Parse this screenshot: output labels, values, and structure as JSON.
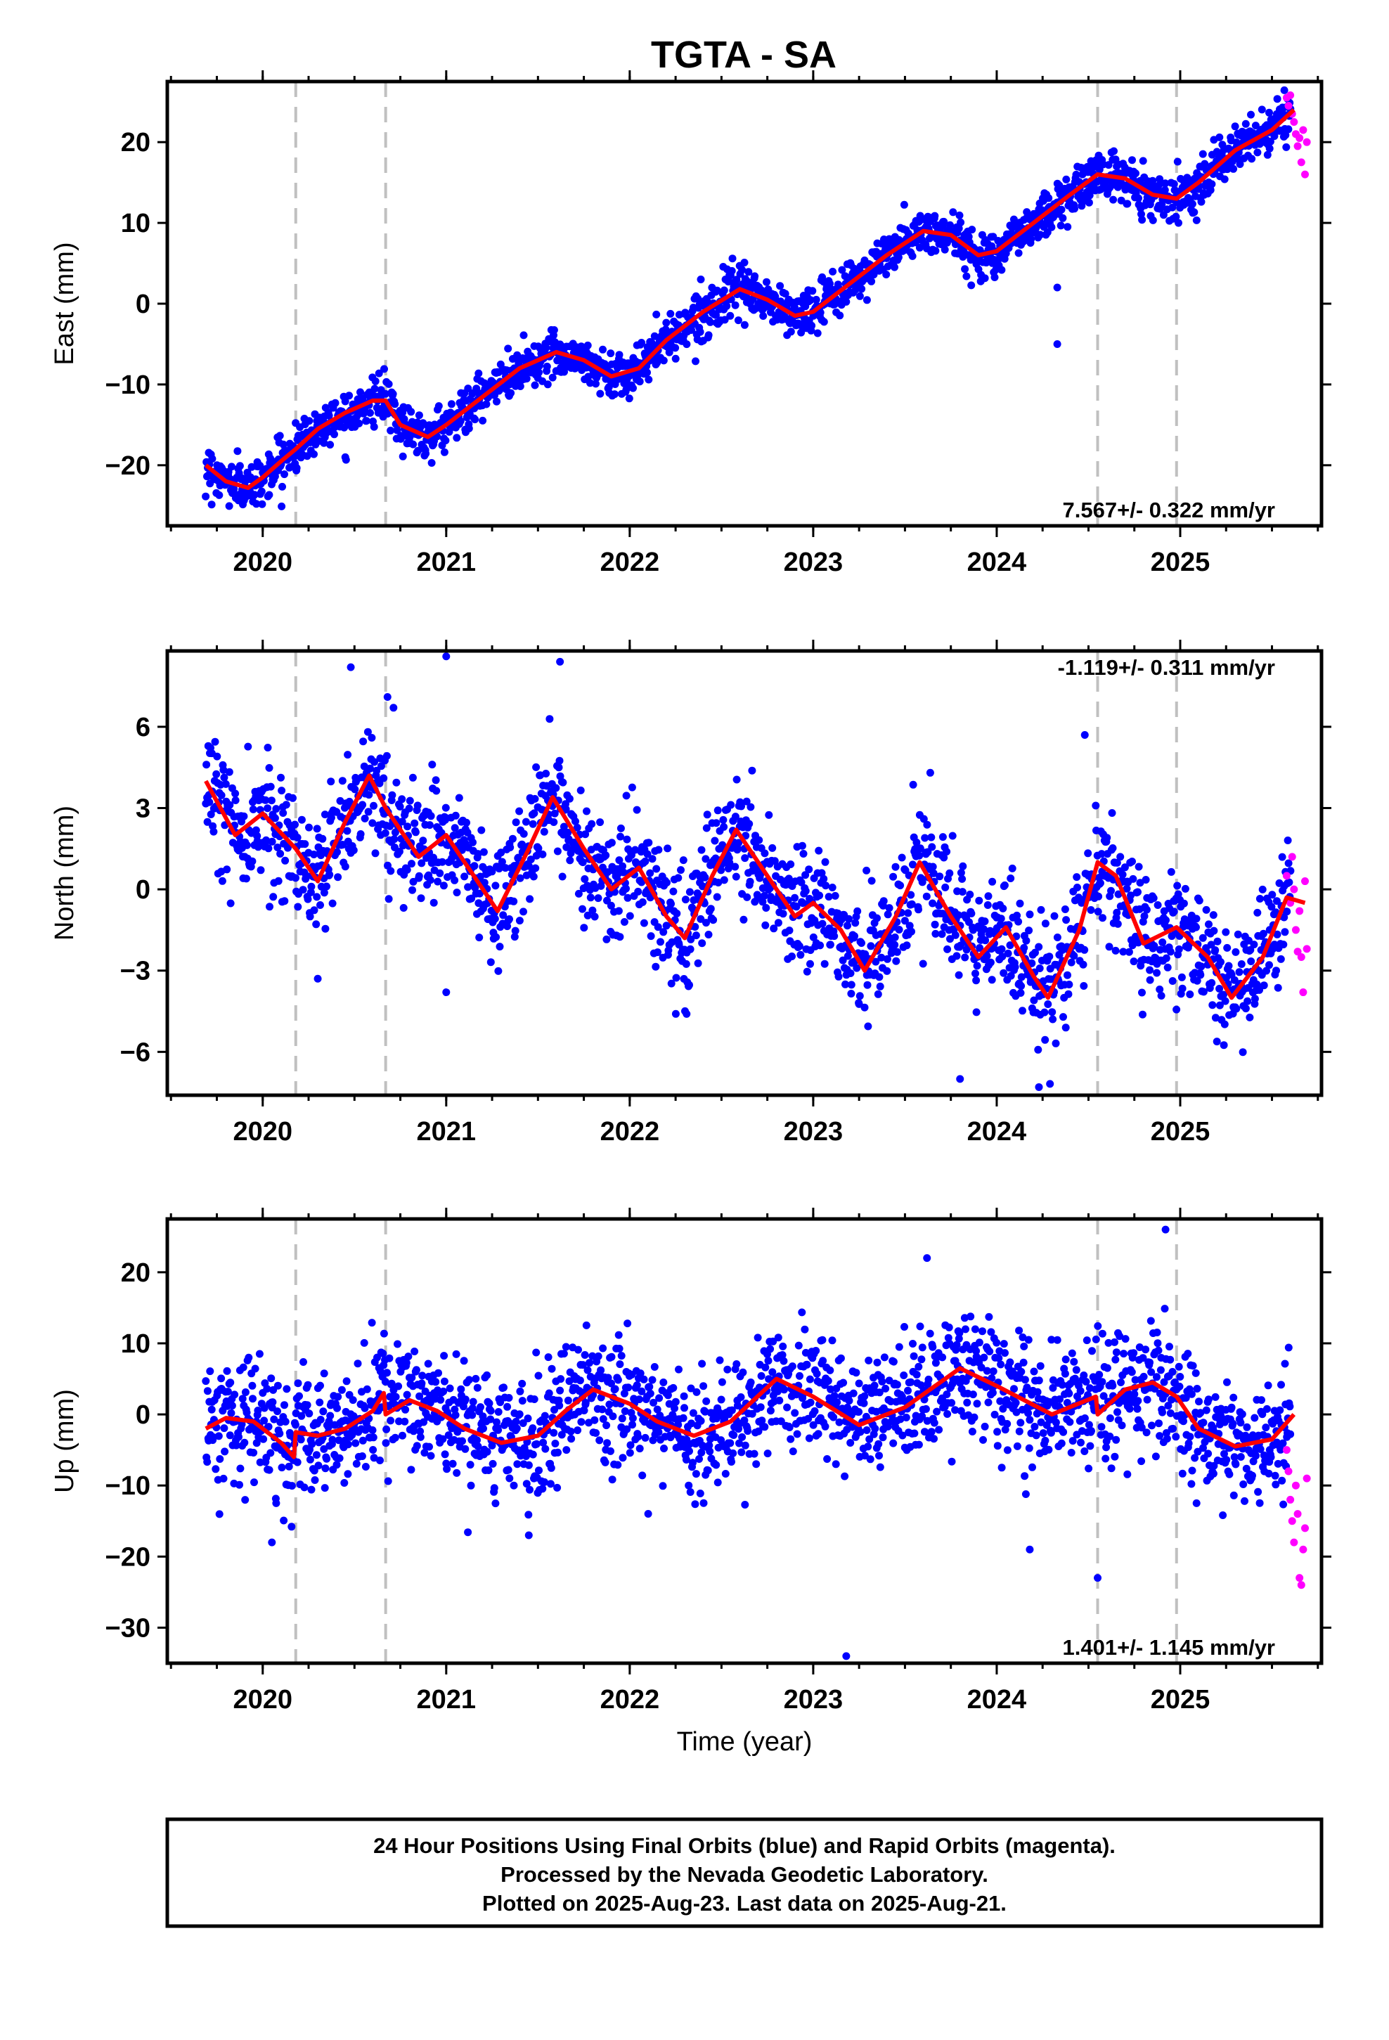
{
  "title": "TGTA - SA",
  "colors": {
    "final": "#0000ff",
    "rapid": "#ff00ff",
    "model": "#ff0000",
    "breaks": "#c0c0c0"
  },
  "breaks": [
    2020.18,
    2020.67,
    2024.55,
    2024.98
  ],
  "chart_data": [
    {
      "type": "scatter",
      "panel": "east",
      "ylabel": "East (mm)",
      "xlabel": "",
      "xlim": [
        2019.48,
        2025.77
      ],
      "ylim": [
        -27.5,
        27.5
      ],
      "yticks": [
        -20,
        -10,
        0,
        10,
        20
      ],
      "xticks": [
        2020,
        2021,
        2022,
        2023,
        2024,
        2025
      ],
      "xtick_labels": [
        "2020",
        "2021",
        "2022",
        "2023",
        "2024",
        "2025"
      ],
      "rate": "7.567+/- 0.322 mm/yr",
      "rate_pos": "bottom-right",
      "model_curve": {
        "x": [
          2019.69,
          2019.8,
          2019.92,
          2020.0,
          2020.1,
          2020.18,
          2020.3,
          2020.45,
          2020.6,
          2020.67,
          2020.75,
          2020.9,
          2021.0,
          2021.2,
          2021.4,
          2021.6,
          2021.75,
          2021.9,
          2022.05,
          2022.2,
          2022.4,
          2022.6,
          2022.75,
          2022.9,
          2023.0,
          2023.2,
          2023.4,
          2023.6,
          2023.75,
          2023.9,
          2024.0,
          2024.2,
          2024.4,
          2024.55,
          2024.7,
          2024.85,
          2024.98,
          2025.1,
          2025.3,
          2025.5,
          2025.62
        ],
        "y": [
          -20,
          -22,
          -22.8,
          -21.5,
          -19.5,
          -18,
          -15.5,
          -13.5,
          -12,
          -12,
          -15,
          -16.5,
          -15,
          -11.5,
          -8,
          -6,
          -7,
          -9,
          -8,
          -4.5,
          -1,
          1.8,
          0.5,
          -1.5,
          -1,
          2.5,
          6,
          9,
          8.5,
          6,
          6.5,
          10,
          13.5,
          16,
          15.5,
          13.5,
          13,
          15,
          19,
          21.5,
          24
        ]
      },
      "final_points": {
        "count": 1850,
        "noise": 1.4,
        "outliers": [
          [
            2024.33,
            2.0
          ],
          [
            2024.33,
            -5.0
          ],
          [
            2020.45,
            -19.0
          ]
        ]
      },
      "rapid_points": {
        "x": [
          2025.58,
          2025.59,
          2025.6,
          2025.61,
          2025.62,
          2025.63,
          2025.64,
          2025.65,
          2025.66,
          2025.67,
          2025.68,
          2025.69
        ],
        "y": [
          25.5,
          24.5,
          25.8,
          23.5,
          22.5,
          21,
          19.5,
          20.5,
          17.5,
          21.5,
          16,
          20
        ]
      }
    },
    {
      "type": "scatter",
      "panel": "north",
      "ylabel": "North (mm)",
      "xlabel": "",
      "xlim": [
        2019.48,
        2025.77
      ],
      "ylim": [
        -7.6,
        8.8
      ],
      "yticks": [
        -6,
        -3,
        0,
        3,
        6
      ],
      "xticks": [
        2020,
        2021,
        2022,
        2023,
        2024,
        2025
      ],
      "xtick_labels": [
        "2020",
        "2021",
        "2022",
        "2023",
        "2024",
        "2025"
      ],
      "rate": "-1.119+/- 0.311 mm/yr",
      "rate_pos": "top-right",
      "model_curve": {
        "x": [
          2019.69,
          2019.85,
          2020.0,
          2020.18,
          2020.3,
          2020.45,
          2020.58,
          2020.67,
          2020.85,
          2021.0,
          2021.15,
          2021.28,
          2021.45,
          2021.58,
          2021.75,
          2021.9,
          2022.05,
          2022.2,
          2022.3,
          2022.45,
          2022.58,
          2022.75,
          2022.9,
          2023.0,
          2023.15,
          2023.28,
          2023.45,
          2023.58,
          2023.75,
          2023.9,
          2024.05,
          2024.2,
          2024.28,
          2024.45,
          2024.55,
          2024.65,
          2024.8,
          2024.98,
          2025.15,
          2025.28,
          2025.45,
          2025.58,
          2025.68
        ],
        "y": [
          4,
          2,
          2.8,
          1.5,
          0.3,
          2.5,
          4.2,
          3,
          1.2,
          2,
          0.5,
          -0.8,
          1.5,
          3.4,
          1.5,
          0,
          0.8,
          -1,
          -1.8,
          0.5,
          2.2,
          0.5,
          -1,
          -0.5,
          -1.5,
          -3,
          -1,
          1,
          -1,
          -2.5,
          -1.4,
          -3.2,
          -4,
          -1.5,
          1,
          0.5,
          -2,
          -1.4,
          -2.5,
          -4,
          -2.5,
          -0.3,
          -0.5
        ]
      },
      "final_points": {
        "count": 1850,
        "noise": 1.1,
        "outliers": [
          [
            2020.48,
            8.2
          ],
          [
            2020.68,
            7.1
          ],
          [
            2021.0,
            8.6
          ],
          [
            2021.62,
            8.4
          ],
          [
            2024.48,
            5.7
          ],
          [
            2020.3,
            -3.3
          ],
          [
            2021.0,
            -3.8
          ],
          [
            2023.8,
            -7.0
          ],
          [
            2024.23,
            -7.3
          ],
          [
            2022.31,
            -4.6
          ]
        ]
      },
      "rapid_points": {
        "x": [
          2025.58,
          2025.6,
          2025.61,
          2025.62,
          2025.63,
          2025.64,
          2025.65,
          2025.66,
          2025.67,
          2025.68,
          2025.69
        ],
        "y": [
          0.5,
          -0.5,
          1.2,
          0,
          -1.5,
          -2.3,
          -0.8,
          -2.5,
          -3.8,
          0.3,
          -2.2
        ]
      }
    },
    {
      "type": "scatter",
      "panel": "up",
      "ylabel": "Up (mm)",
      "xlabel": "Time (year)",
      "xlim": [
        2019.48,
        2025.77
      ],
      "ylim": [
        -35,
        27.5
      ],
      "yticks": [
        -30,
        -20,
        -10,
        0,
        10,
        20
      ],
      "xticks": [
        2020,
        2021,
        2022,
        2023,
        2024,
        2025
      ],
      "xtick_labels": [
        "2020",
        "2021",
        "2022",
        "2023",
        "2024",
        "2025"
      ],
      "rate": "1.401+/- 1.145 mm/yr",
      "rate_pos": "bottom-right",
      "model_curve": {
        "x": [
          2019.69,
          2019.8,
          2019.95,
          2020.1,
          2020.17,
          2020.18,
          2020.3,
          2020.45,
          2020.6,
          2020.66,
          2020.67,
          2020.8,
          2020.95,
          2021.1,
          2021.3,
          2021.5,
          2021.65,
          2021.8,
          2022.0,
          2022.15,
          2022.35,
          2022.55,
          2022.8,
          2023.0,
          2023.25,
          2023.5,
          2023.8,
          2024.0,
          2024.3,
          2024.54,
          2024.55,
          2024.7,
          2024.85,
          2024.98,
          2025.1,
          2025.3,
          2025.5,
          2025.62
        ],
        "y": [
          -2,
          -0.5,
          -1,
          -4,
          -6,
          -2.5,
          -3,
          -2,
          0.5,
          3,
          0,
          2,
          0.5,
          -2,
          -4,
          -3,
          0.5,
          3.5,
          1.5,
          -1,
          -3,
          -1,
          5,
          2.5,
          -1.5,
          1,
          6.5,
          4,
          0,
          2.5,
          0,
          3.5,
          4.5,
          2.5,
          -2,
          -4.5,
          -3.5,
          0
        ]
      },
      "final_points": {
        "count": 1850,
        "noise": 4.2,
        "outliers": [
          [
            2023.18,
            -34
          ],
          [
            2024.92,
            26
          ],
          [
            2023.62,
            22
          ],
          [
            2020.05,
            -18
          ],
          [
            2021.45,
            -17
          ],
          [
            2024.55,
            -23
          ],
          [
            2024.18,
            -19
          ]
        ]
      },
      "rapid_points": {
        "x": [
          2025.58,
          2025.59,
          2025.6,
          2025.61,
          2025.62,
          2025.63,
          2025.64,
          2025.65,
          2025.66,
          2025.67,
          2025.68,
          2025.69
        ],
        "y": [
          -5,
          -8,
          -12,
          -15,
          -18,
          -10,
          -14,
          -23,
          -24,
          -19,
          -16,
          -9
        ]
      }
    }
  ],
  "footer": {
    "line1": "24 Hour Positions Using Final Orbits (blue) and Rapid Orbits (magenta).",
    "line2": "Processed by the Nevada Geodetic Laboratory.",
    "line3": "Plotted on 2025-Aug-23. Last data on 2025-Aug-21."
  }
}
